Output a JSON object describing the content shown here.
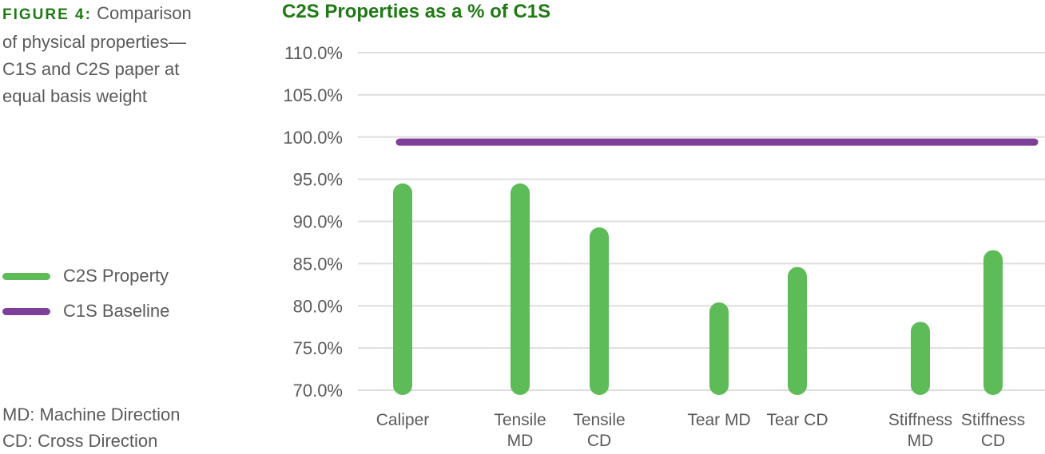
{
  "caption": {
    "figure_label": "FIGURE 4:",
    "text_line1": "Comparison",
    "text_line2": "of physical properties—",
    "text_line3": "C1S and C2S paper at",
    "text_line4": "equal basis weight"
  },
  "legend": {
    "items": [
      {
        "label": "C2S Property",
        "color": "#5dbb58"
      },
      {
        "label": "C1S Baseline",
        "color": "#7d3f98"
      }
    ]
  },
  "notes": {
    "md": "MD: Machine Direction",
    "cd": "CD: Cross Direction"
  },
  "chart_data": {
    "type": "bar",
    "title": "C2S Properties as a % of C1S",
    "xlabel": "",
    "ylabel": "",
    "ylim": [
      70,
      110
    ],
    "yticks": [
      "110.0%",
      "105.0%",
      "100.0%",
      "95.0%",
      "90.0%",
      "85.0%",
      "80.0%",
      "75.0%",
      "70.0%"
    ],
    "grid": true,
    "legend_position": "left",
    "categories": [
      "Caliper",
      "Tensile MD",
      "Tensile CD",
      "Tear MD",
      "Tear CD",
      "Stiffness MD",
      "Stiffness CD"
    ],
    "series": [
      {
        "name": "C2S Property",
        "type": "bar",
        "color": "#5dbb58",
        "values": [
          94.5,
          94.5,
          89.3,
          80.4,
          84.6,
          78.1,
          86.6
        ]
      },
      {
        "name": "C1S Baseline",
        "type": "line",
        "color": "#7d3f98",
        "values": [
          99.4,
          99.4,
          99.4,
          99.4,
          99.4,
          99.4,
          99.4
        ]
      }
    ]
  }
}
